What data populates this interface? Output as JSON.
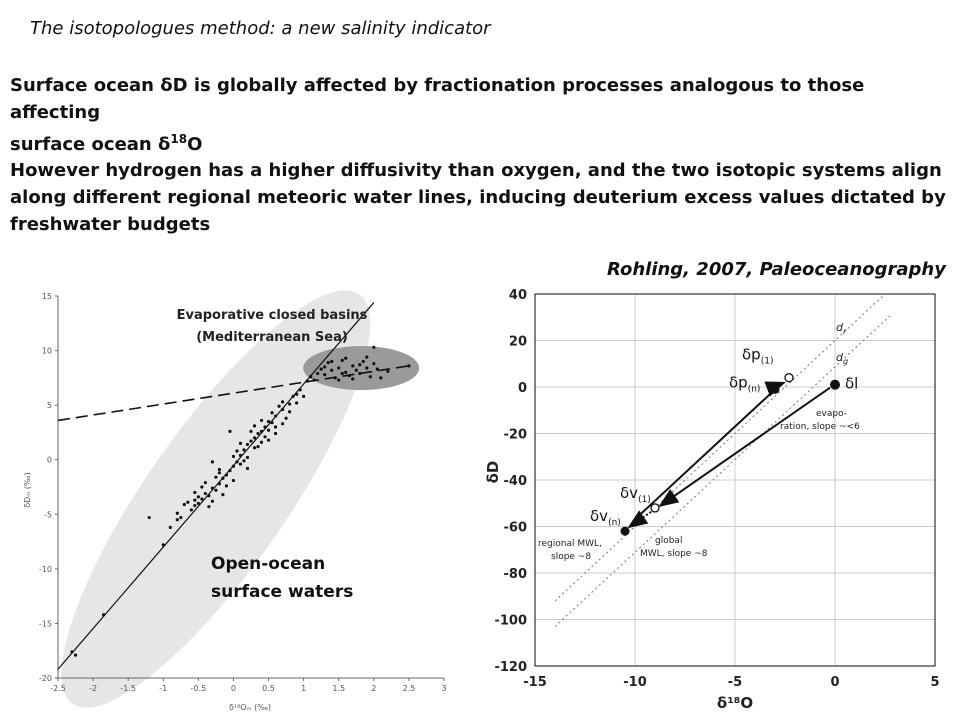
{
  "slide": {
    "title": "The isotopologues method: a new salinity indicator",
    "paragraph1_a": "Surface ocean δD is globally affected by fractionation processes analogous to those affecting",
    "paragraph1_b_prefix": "surface ocean δ",
    "paragraph1_b_sup": "18",
    "paragraph1_b_suffix": "O",
    "paragraph2_lines": [
      "However hydrogen has a higher diffusivity than oxygen, and the two isotopic systems align",
      "along different regional meteoric water lines, inducing deuterium excess values dictated by",
      "freshwater budgets"
    ],
    "citation": "Rohling, 2007, Paleoceanography"
  },
  "chart_data": [
    {
      "type": "scatter",
      "xlabel": "δ¹⁸Oₘ (‰)",
      "ylabel": "δDₘ (‰)",
      "xlim": [
        -2.5,
        3.0
      ],
      "ylim": [
        -20,
        15
      ],
      "x_ticks": [
        "-2.5",
        "-2",
        "-1.5",
        "-1",
        "-0.5",
        "0",
        "0.5",
        "1",
        "1.5",
        "2",
        "2.5",
        "3"
      ],
      "y_ticks": [
        "-20",
        "-15",
        "-10",
        "-5",
        "0",
        "5",
        "10",
        "15"
      ],
      "annotations": {
        "closed_basins_line1": "Evaporative closed basins",
        "closed_basins_line2": "(Mediterranean Sea)",
        "open_ocean_line1": "Open-ocean",
        "open_ocean_line2": "surface waters"
      },
      "fit_lines": [
        {
          "style": "solid",
          "from": [
            -2.5,
            -19.2
          ],
          "to": [
            2.0,
            14.4
          ]
        },
        {
          "style": "dashed",
          "from": [
            -2.5,
            3.6
          ],
          "to": [
            2.5,
            8.6
          ]
        }
      ],
      "points": [
        [
          -2.3,
          -17.6
        ],
        [
          -2.25,
          -17.9
        ],
        [
          -1.85,
          -14.2
        ],
        [
          -1.0,
          -7.8
        ],
        [
          -0.9,
          -6.2
        ],
        [
          -0.75,
          -5.3
        ],
        [
          -0.8,
          -5.5
        ],
        [
          -0.6,
          -4.6
        ],
        [
          -0.55,
          -4.2
        ],
        [
          -0.5,
          -4.0
        ],
        [
          -0.45,
          -3.6
        ],
        [
          -0.4,
          -3.1
        ],
        [
          -0.35,
          -3.3
        ],
        [
          -0.3,
          -2.6
        ],
        [
          -0.25,
          -2.8
        ],
        [
          -0.2,
          -2.2
        ],
        [
          -0.15,
          -1.7
        ],
        [
          -0.1,
          -1.4
        ],
        [
          -0.05,
          -1.0
        ],
        [
          0.0,
          -0.6
        ],
        [
          0.05,
          -0.2
        ],
        [
          0.1,
          0.4
        ],
        [
          0.15,
          0.9
        ],
        [
          0.2,
          1.4
        ],
        [
          0.25,
          1.7
        ],
        [
          0.3,
          2.0
        ],
        [
          0.35,
          2.4
        ],
        [
          0.4,
          2.6
        ],
        [
          0.45,
          3.0
        ],
        [
          0.5,
          3.5
        ],
        [
          0.55,
          3.4
        ],
        [
          0.6,
          4.0
        ],
        [
          0.7,
          4.6
        ],
        [
          0.8,
          5.1
        ],
        [
          0.9,
          6.0
        ],
        [
          0.95,
          6.4
        ],
        [
          1.05,
          7.2
        ],
        [
          -0.55,
          -3.0
        ],
        [
          -0.45,
          -2.5
        ],
        [
          -0.35,
          -4.3
        ],
        [
          -0.25,
          -1.6
        ],
        [
          -0.15,
          -3.2
        ],
        [
          0.0,
          -1.9
        ],
        [
          0.1,
          -0.4
        ],
        [
          0.2,
          0.2
        ],
        [
          0.3,
          1.1
        ],
        [
          0.4,
          1.6
        ],
        [
          0.5,
          2.7
        ],
        [
          0.6,
          3.0
        ],
        [
          0.65,
          4.9
        ],
        [
          0.75,
          3.8
        ],
        [
          0.85,
          5.8
        ],
        [
          -0.65,
          -3.9
        ],
        [
          -0.5,
          -3.4
        ],
        [
          -0.3,
          -3.8
        ],
        [
          -0.2,
          -0.9
        ],
        [
          -0.1,
          -2.4
        ],
        [
          0.05,
          0.8
        ],
        [
          0.15,
          -0.1
        ],
        [
          0.25,
          2.6
        ],
        [
          0.35,
          1.2
        ],
        [
          0.45,
          2.1
        ],
        [
          0.55,
          4.3
        ],
        [
          0.7,
          3.3
        ],
        [
          0.8,
          4.4
        ],
        [
          1.0,
          5.8
        ],
        [
          -0.8,
          -4.9
        ],
        [
          -0.7,
          -4.1
        ],
        [
          -0.4,
          -2.1
        ],
        [
          0.0,
          0.3
        ],
        [
          0.3,
          3.1
        ],
        [
          0.6,
          2.4
        ],
        [
          0.9,
          5.2
        ],
        [
          -0.55,
          -3.7
        ],
        [
          -0.2,
          -1.2
        ],
        [
          0.1,
          1.5
        ],
        [
          0.4,
          3.6
        ],
        [
          0.7,
          5.3
        ],
        [
          -1.2,
          -5.3
        ],
        [
          -0.3,
          -0.2
        ],
        [
          0.2,
          -0.8
        ],
        [
          0.5,
          1.8
        ],
        [
          -0.05,
          2.6
        ],
        [
          1.1,
          7.6
        ],
        [
          1.2,
          7.9
        ],
        [
          1.25,
          8.3
        ],
        [
          1.3,
          7.8
        ],
        [
          1.35,
          8.9
        ],
        [
          1.4,
          8.2
        ],
        [
          1.45,
          7.5
        ],
        [
          1.5,
          8.4
        ],
        [
          1.55,
          9.1
        ],
        [
          1.6,
          8.0
        ],
        [
          1.65,
          7.7
        ],
        [
          1.7,
          8.6
        ],
        [
          1.75,
          8.2
        ],
        [
          1.8,
          7.9
        ],
        [
          1.85,
          9.0
        ],
        [
          1.9,
          8.4
        ],
        [
          1.95,
          7.6
        ],
        [
          2.0,
          8.8
        ],
        [
          2.05,
          8.3
        ],
        [
          2.1,
          7.5
        ],
        [
          1.5,
          7.3
        ],
        [
          1.6,
          9.3
        ],
        [
          1.3,
          8.5
        ],
        [
          1.15,
          7.3
        ],
        [
          2.0,
          10.3
        ],
        [
          2.2,
          8.1
        ],
        [
          2.5,
          8.6
        ],
        [
          1.55,
          7.9
        ],
        [
          1.7,
          7.4
        ],
        [
          1.9,
          9.4
        ],
        [
          1.4,
          9.0
        ],
        [
          1.8,
          8.7
        ]
      ]
    },
    {
      "type": "line",
      "xlabel": "δ¹⁸O",
      "ylabel": "δD",
      "xlim": [
        -15,
        5
      ],
      "ylim": [
        -120,
        40
      ],
      "x_ticks": [
        "-15",
        "-10",
        "-5",
        "0",
        "5"
      ],
      "y_ticks": [
        "40",
        "20",
        "0",
        "-20",
        "-40",
        "-60",
        "-80",
        "-100",
        "-120"
      ],
      "series": [
        {
          "label": "δl",
          "x": 0,
          "y": 1
        },
        {
          "label": "δp(n)",
          "x": -3,
          "y": -1
        },
        {
          "label": "δv(n)",
          "x": -10.5,
          "y": -62
        },
        {
          "label": "δp(1)",
          "x": -2.3,
          "y": 4
        },
        {
          "label": "δv(1)",
          "x": -9,
          "y": -52
        }
      ],
      "lines": [
        {
          "label_main": "d",
          "label_sub": "r",
          "from": [
            -14,
            -92
          ],
          "to": [
            2.5,
            40
          ]
        },
        {
          "label_main": "d",
          "label_sub": "g",
          "from": [
            -14,
            -103
          ],
          "to": [
            2.8,
            31
          ]
        }
      ],
      "text_annotations": {
        "evap_line1": "evapo-",
        "evap_line2": "ration, slope ~<6",
        "regional_line1": "regional MWL,",
        "regional_line2": "slope ~8",
        "global_line1": "global",
        "global_line2": "MWL, slope ~8"
      }
    }
  ]
}
